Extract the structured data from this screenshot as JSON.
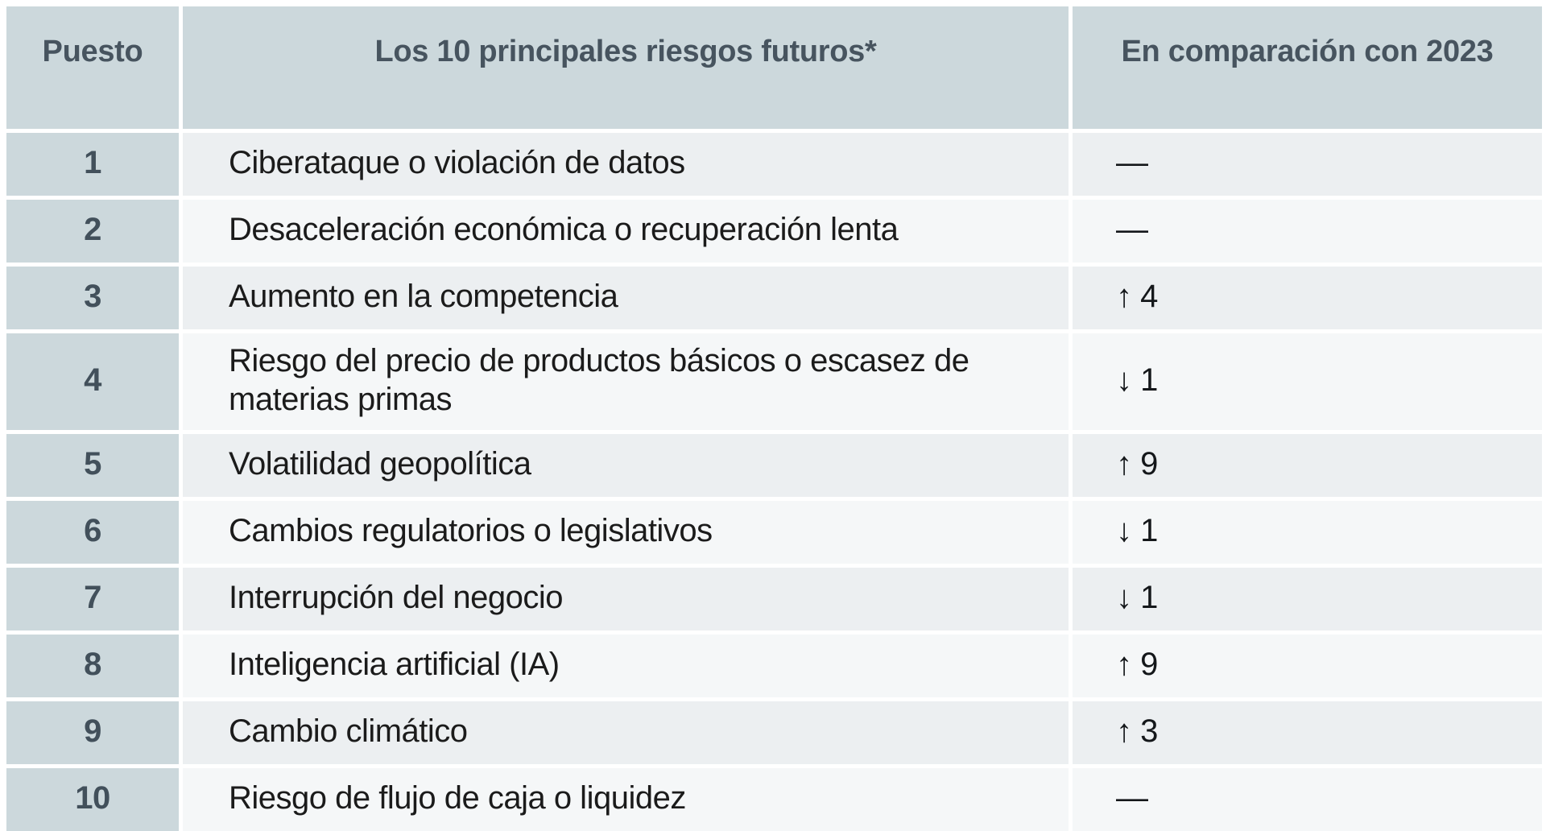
{
  "table": {
    "headers": {
      "rank": "Puesto",
      "risk": "Los 10 principales riesgos futuros*",
      "comparison": "En comparación con 2023"
    },
    "rows": [
      {
        "rank": "1",
        "risk": "Ciberataque o violación de datos",
        "change": "—"
      },
      {
        "rank": "2",
        "risk": "Desaceleración económica o recuperación lenta",
        "change": "—"
      },
      {
        "rank": "3",
        "risk": "Aumento en la competencia",
        "change": "↑ 4"
      },
      {
        "rank": "4",
        "risk": "Riesgo del precio de productos básicos o escasez de materias primas",
        "change": "↓ 1"
      },
      {
        "rank": "5",
        "risk": "Volatilidad geopolítica",
        "change": "↑ 9"
      },
      {
        "rank": "6",
        "risk": "Cambios regulatorios o legislativos",
        "change": "↓ 1"
      },
      {
        "rank": "7",
        "risk": "Interrupción del negocio",
        "change": "↓ 1"
      },
      {
        "rank": "8",
        "risk": "Inteligencia artificial (IA)",
        "change": "↑ 9"
      },
      {
        "rank": "9",
        "risk": "Cambio climático",
        "change": "↑ 3"
      },
      {
        "rank": "10",
        "risk": "Riesgo de flujo de caja o liquidez",
        "change": "—"
      }
    ],
    "icons": {
      "up": "up-arrow-icon",
      "down": "down-arrow-icon",
      "same": "no-change-dash"
    },
    "colors": {
      "header_bg": "#ccd8dc",
      "rank_bg": "#ccd8dc",
      "row_odd_bg": "#eceff1",
      "row_even_bg": "#f5f7f8",
      "header_text": "#47545f",
      "rank_text": "#42505b",
      "risk_text": "#1b1b1b",
      "change_text": "#14171a"
    }
  }
}
